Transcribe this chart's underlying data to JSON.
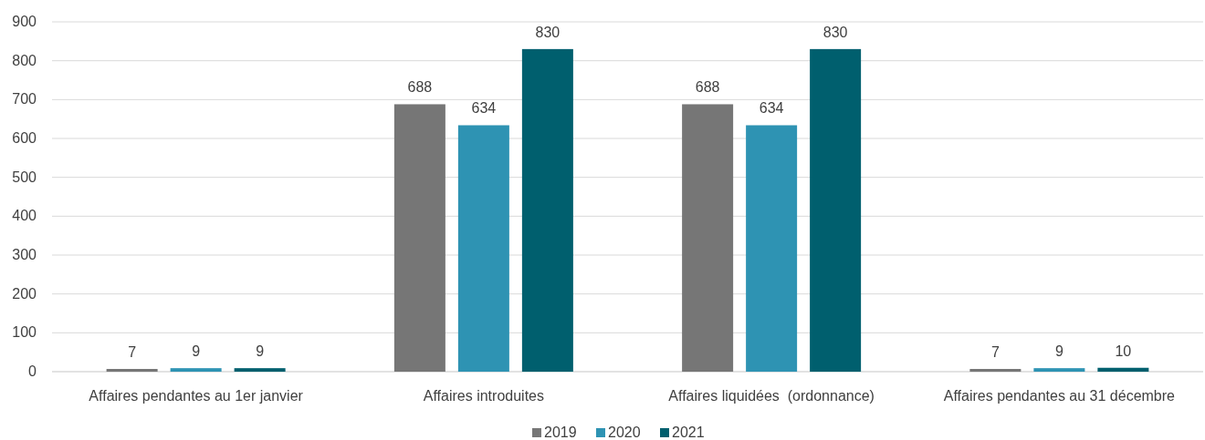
{
  "chart_data": {
    "type": "bar",
    "categories": [
      "Affaires pendantes au 1er janvier",
      "Affaires introduites",
      "Affaires liquidées  (ordonnance)",
      "Affaires pendantes au 31 décembre"
    ],
    "series": [
      {
        "name": "2019",
        "color": "#767676",
        "values": [
          7,
          688,
          688,
          7
        ]
      },
      {
        "name": "2020",
        "color": "#2e93b3",
        "values": [
          9,
          634,
          634,
          9
        ]
      },
      {
        "name": "2021",
        "color": "#005f6e",
        "values": [
          9,
          830,
          830,
          10
        ]
      }
    ],
    "ylim": [
      0,
      900
    ],
    "yticks": [
      0,
      100,
      200,
      300,
      400,
      500,
      600,
      700,
      800,
      900
    ],
    "grid": "y",
    "legend": "bottom",
    "data_labels": true
  }
}
